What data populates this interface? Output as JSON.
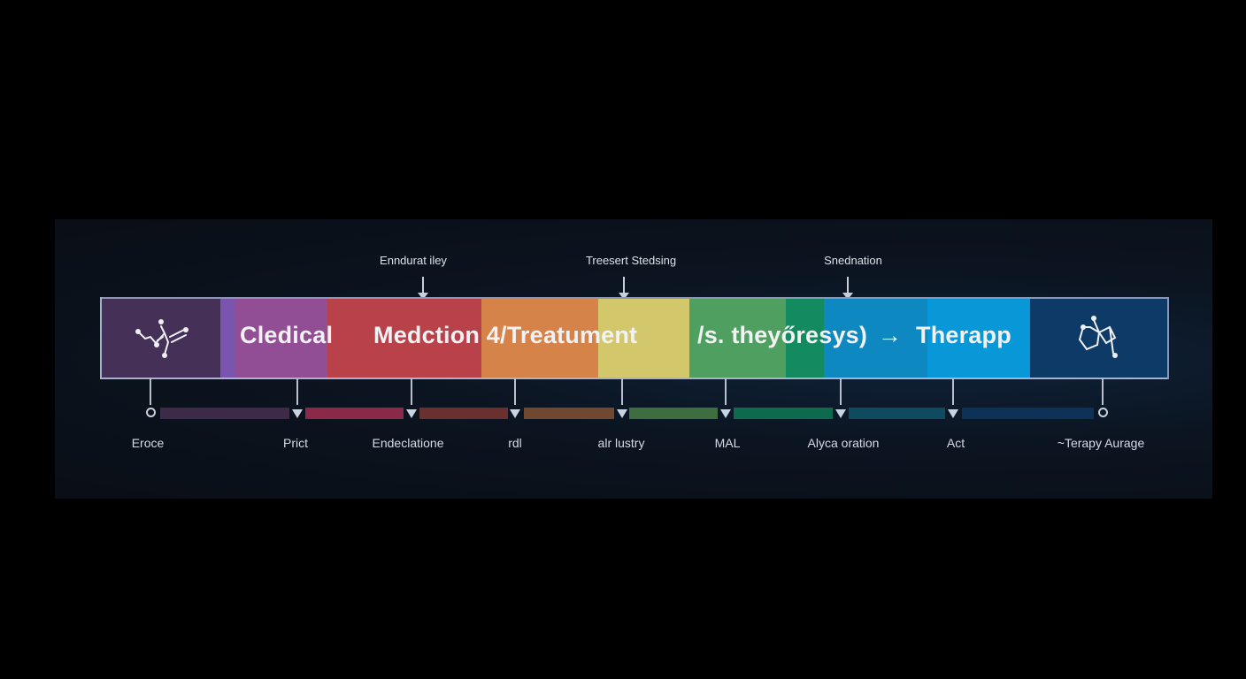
{
  "top_annotations": [
    {
      "label": "Enndurat iley"
    },
    {
      "label": "Treesert Stedsing"
    },
    {
      "label": "Snednation"
    }
  ],
  "band": {
    "segment_colors": [
      "#453058",
      "#7a55b0",
      "#924e94",
      "#b8414a",
      "#d6834a",
      "#d2c76a",
      "#4fa060",
      "#138a60",
      "#0e88c0",
      "#0898d8",
      "#0d3a66"
    ],
    "texts": [
      "Cledical",
      "Medction 4/Treatument",
      "/s. theyőresys)",
      "→",
      "Therapp"
    ],
    "left_icon": "molecule-icon",
    "right_icon": "molecule-icon"
  },
  "bottom_labels": [
    "Eroce",
    "Prict",
    "Endeclatione",
    "rdl",
    "alr lustry",
    "MAL",
    "Alyca oration",
    "Act",
    "~Terapy Aurage"
  ],
  "bottom_bar_colors": [
    "#3d2a48",
    "#8a2a48",
    "#6a3030",
    "#704830",
    "#3e6e40",
    "#0e6a4c",
    "#0e4a60",
    "#0d3258"
  ]
}
